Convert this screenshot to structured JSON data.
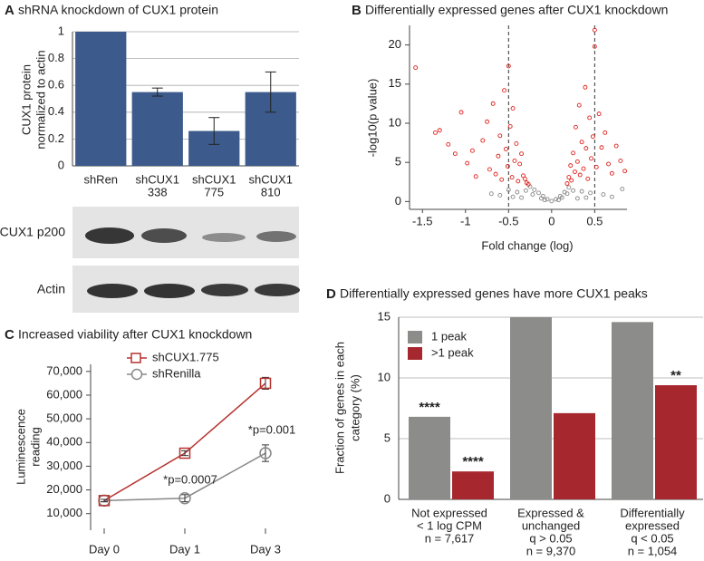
{
  "chart_data": [
    {
      "type": "bar",
      "panel": "A",
      "title": "shRNA knockdown of CUX1 protein",
      "ylabel": [
        "CUX1 protein",
        "normalized to actin"
      ],
      "categories": [
        [
          "shRen"
        ],
        [
          "shCUX1",
          "338"
        ],
        [
          "shCUX1",
          "775"
        ],
        [
          "shCUX1",
          "810"
        ]
      ],
      "values": [
        1,
        0.55,
        0.26,
        0.55
      ],
      "errors": [
        0,
        0.03,
        0.1,
        0.15
      ],
      "color": "#3d5a8c",
      "ylim": [
        0,
        1
      ],
      "yticks": [
        0,
        0.2,
        0.4,
        0.6,
        0.8,
        1
      ],
      "grid": true,
      "blot_labels": [
        "CUX1 p200",
        "Actin"
      ]
    },
    {
      "type": "scatter",
      "panel": "B",
      "title": "Differentially expressed genes after CUX1 knockdown",
      "xlabel": "Fold change (log)",
      "ylabel": "-log10(p value)",
      "xlim": [
        -1.65,
        0.875
      ],
      "xticks": [
        -1.5,
        -1,
        -0.5,
        0,
        0.5
      ],
      "ylim": [
        -1,
        22.5
      ],
      "yticks": [
        0,
        5,
        10,
        15,
        20
      ],
      "vlines": [
        -0.5,
        0.5
      ],
      "series": [
        {
          "color": "#888888",
          "x": [
            -0.5,
            -0.4,
            -0.3,
            -0.25,
            -0.2,
            -0.15,
            -0.1,
            -0.05,
            0,
            0.05,
            0.1,
            0.15,
            0.2,
            0.25,
            0.35,
            0.45,
            -0.6,
            -0.7,
            0.6,
            0.7,
            -0.35,
            0.3,
            0.82,
            -0.22,
            -0.12,
            0.12,
            0.18,
            -0.45,
            0.4,
            -0.08,
            0.08
          ],
          "values": [
            1.5,
            1.2,
            1.4,
            1.9,
            1.5,
            1.1,
            0.7,
            0.3,
            0.05,
            0.3,
            0.7,
            1.2,
            1.8,
            1.4,
            1.3,
            1.1,
            0.8,
            1.0,
            0.9,
            0.6,
            0.5,
            0.4,
            1.6,
            0.9,
            0.4,
            0.5,
            1.0,
            0.6,
            0.5,
            0.2,
            0.2
          ]
        },
        {
          "color": "#e0201b",
          "x": [
            -1.58,
            -1.35,
            -1.3,
            -1.2,
            -1.12,
            -1.05,
            -0.98,
            -0.92,
            -0.88,
            -0.8,
            -0.75,
            -0.72,
            -0.68,
            -0.65,
            -0.62,
            -0.6,
            -0.58,
            -0.55,
            -0.53,
            -0.51,
            -0.5,
            -0.48,
            -0.46,
            -0.45,
            -0.43,
            -0.41,
            -0.39,
            -0.37,
            -0.35,
            -0.33,
            -0.31,
            -0.29,
            -0.27,
            0.18,
            0.2,
            0.22,
            0.23,
            0.25,
            0.27,
            0.28,
            0.3,
            0.32,
            0.33,
            0.35,
            0.37,
            0.39,
            0.4,
            0.42,
            0.44,
            0.46,
            0.48,
            0.5,
            0.5,
            0.52,
            0.55,
            0.58,
            0.62,
            0.66,
            0.7,
            0.75,
            0.8,
            0.85
          ],
          "values": [
            17.1,
            8.8,
            9.1,
            7.3,
            6.1,
            11.4,
            4.9,
            6.5,
            3.2,
            7.8,
            10.2,
            4.1,
            12.5,
            3.5,
            5.8,
            8.4,
            2.8,
            14.2,
            6.7,
            4.5,
            17.3,
            9.6,
            3.1,
            11.9,
            5.2,
            7.4,
            2.6,
            4.8,
            6.1,
            3.3,
            2.9,
            2.4,
            2.2,
            2.3,
            3.1,
            4.6,
            2.7,
            6.2,
            3.8,
            9.5,
            5.1,
            12.3,
            3.4,
            7.6,
            4.2,
            14.6,
            6.8,
            2.9,
            10.7,
            5.5,
            8.3,
            19.8,
            21.9,
            4.4,
            11.2,
            6.9,
            8.8,
            4.8,
            3.6,
            7.1,
            5.2,
            3.9
          ]
        }
      ]
    },
    {
      "type": "line",
      "panel": "C",
      "title": "Increased viability after CUX1 knockdown",
      "ylabel": [
        "Luminescence",
        "reading"
      ],
      "categories": [
        "Day 0",
        "Day 1",
        "Day 3"
      ],
      "ylim": [
        3000,
        73000
      ],
      "yticks": [
        {
          "value": 10000,
          "label": "10,000"
        },
        {
          "value": 20000,
          "label": "20,000"
        },
        {
          "value": 30000,
          "label": "30,000"
        },
        {
          "value": 40000,
          "label": "40,000"
        },
        {
          "value": 50000,
          "label": "50,000"
        },
        {
          "value": 60000,
          "label": "60,000"
        },
        {
          "value": 70000,
          "label": "70,000"
        }
      ],
      "legend": "top-left",
      "annotations": [
        "*p=0.0007",
        "*p=0.001"
      ],
      "series": [
        {
          "name": "shCUX1.775",
          "color": "#b5322f",
          "marker": "square",
          "values": [
            15500,
            35500,
            65000
          ],
          "errors": [
            500,
            1000,
            2500
          ]
        },
        {
          "name": "shRenilla",
          "color": "#888888",
          "marker": "circle",
          "values": [
            15500,
            16500,
            35500
          ],
          "errors": [
            500,
            1500,
            3500
          ]
        }
      ]
    },
    {
      "type": "bar",
      "panel": "D",
      "title": "Differentially expressed genes have more CUX1 peaks",
      "ylabel": [
        "Fraction of genes in each",
        "category  (%)"
      ],
      "categories": [
        [
          "Not expressed",
          "< 1 log CPM",
          "n = 7,617"
        ],
        [
          "Expressed &",
          "unchanged",
          "q > 0.05",
          "n = 9,370"
        ],
        [
          "Differentially",
          "expressed",
          "q < 0.05",
          "n = 1,054"
        ]
      ],
      "ylim": [
        0,
        15
      ],
      "yticks": [
        0,
        5,
        10,
        15
      ],
      "grid": true,
      "legend": "top-left",
      "series": [
        {
          "name": "1 peak",
          "color": "#8c8c8a",
          "values": [
            6.8,
            15,
            14.6
          ],
          "significance": [
            "****",
            null,
            null
          ]
        },
        {
          "name": ">1 peak",
          "color": "#a6282e",
          "values": [
            2.3,
            7.1,
            9.4
          ],
          "significance": [
            "****",
            null,
            "**"
          ]
        }
      ]
    }
  ]
}
